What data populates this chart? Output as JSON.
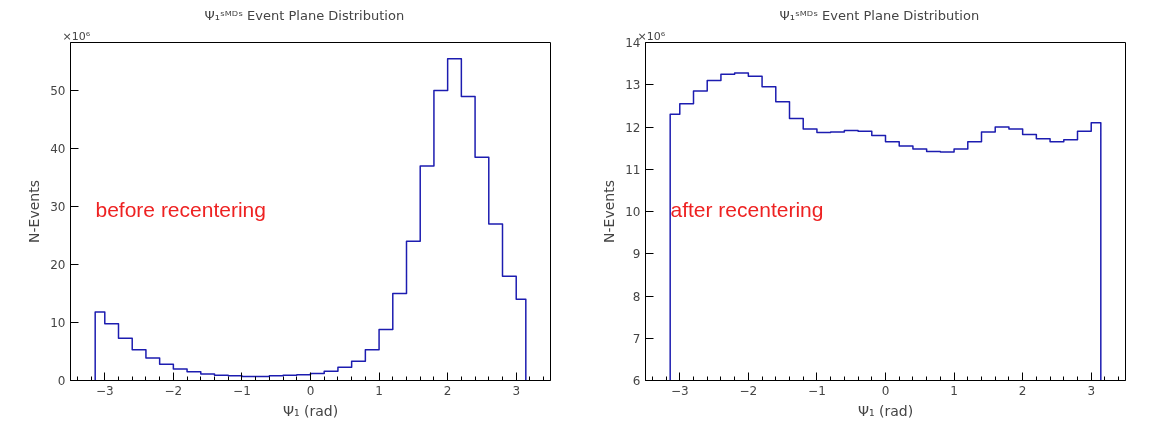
{
  "chart_data": [
    {
      "type": "histogram",
      "title": "Ψ₁ˢᴹᴰˢ    Event Plane Distribution",
      "xlabel": "Ψ₁ (rad)",
      "ylabel": "N-Events",
      "annotations": [
        "×10⁶",
        "before recentering"
      ],
      "color": "#1c1cb0",
      "bins": [
        -3.14,
        -3.0,
        -2.8,
        -2.6,
        -2.4,
        -2.2,
        -2.0,
        -1.8,
        -1.6,
        -1.4,
        -1.2,
        -1.0,
        -0.8,
        -0.6,
        -0.4,
        -0.2,
        0.0,
        0.2,
        0.4,
        0.6,
        0.8,
        1.0,
        1.2,
        1.4,
        1.6,
        1.8,
        2.0,
        2.2,
        2.4,
        2.6,
        2.8,
        3.0,
        3.14
      ],
      "values": [
        11.8,
        9.8,
        7.3,
        5.3,
        3.9,
        2.8,
        2.0,
        1.5,
        1.1,
        0.9,
        0.8,
        0.7,
        0.7,
        0.8,
        0.9,
        1.0,
        1.2,
        1.6,
        2.3,
        3.3,
        5.3,
        8.8,
        15,
        24,
        37,
        50,
        55.5,
        49,
        38.5,
        27,
        18,
        14
      ],
      "xlim": [
        -3.5,
        3.5
      ],
      "xticks": [
        -3,
        -2,
        -1,
        0,
        1,
        2,
        3
      ],
      "ylim": [
        0,
        58.3
      ],
      "yticks": [
        0,
        10,
        20,
        30,
        40,
        50
      ],
      "grid": false
    },
    {
      "type": "histogram",
      "title": "Ψ₁ˢᴹᴰˢ    Event Plane Distribution",
      "xlabel": "Ψ₁ (rad)",
      "ylabel": "N-Events",
      "annotations": [
        "×10⁶",
        "after recentering"
      ],
      "color": "#1c1cb0",
      "bins": [
        -3.14,
        -3.0,
        -2.8,
        -2.6,
        -2.4,
        -2.2,
        -2.0,
        -1.8,
        -1.6,
        -1.4,
        -1.2,
        -1.0,
        -0.8,
        -0.6,
        -0.4,
        -0.2,
        0.0,
        0.2,
        0.4,
        0.6,
        0.8,
        1.0,
        1.2,
        1.4,
        1.6,
        1.8,
        2.0,
        2.2,
        2.4,
        2.6,
        2.8,
        3.0,
        3.14
      ],
      "values": [
        12.3,
        12.55,
        12.85,
        13.1,
        13.25,
        13.28,
        13.2,
        12.95,
        12.6,
        12.2,
        11.95,
        11.87,
        11.88,
        11.92,
        11.9,
        11.8,
        11.65,
        11.55,
        11.48,
        11.42,
        11.41,
        11.48,
        11.65,
        11.88,
        12.0,
        11.95,
        11.82,
        11.72,
        11.65,
        11.7,
        11.9,
        12.1
      ],
      "xlim": [
        -3.5,
        3.5
      ],
      "xticks": [
        -3,
        -2,
        -1,
        0,
        1,
        2,
        3
      ],
      "ylim": [
        6,
        14
      ],
      "yticks": [
        6,
        7,
        8,
        9,
        10,
        11,
        12,
        13,
        14
      ],
      "grid": false
    }
  ]
}
